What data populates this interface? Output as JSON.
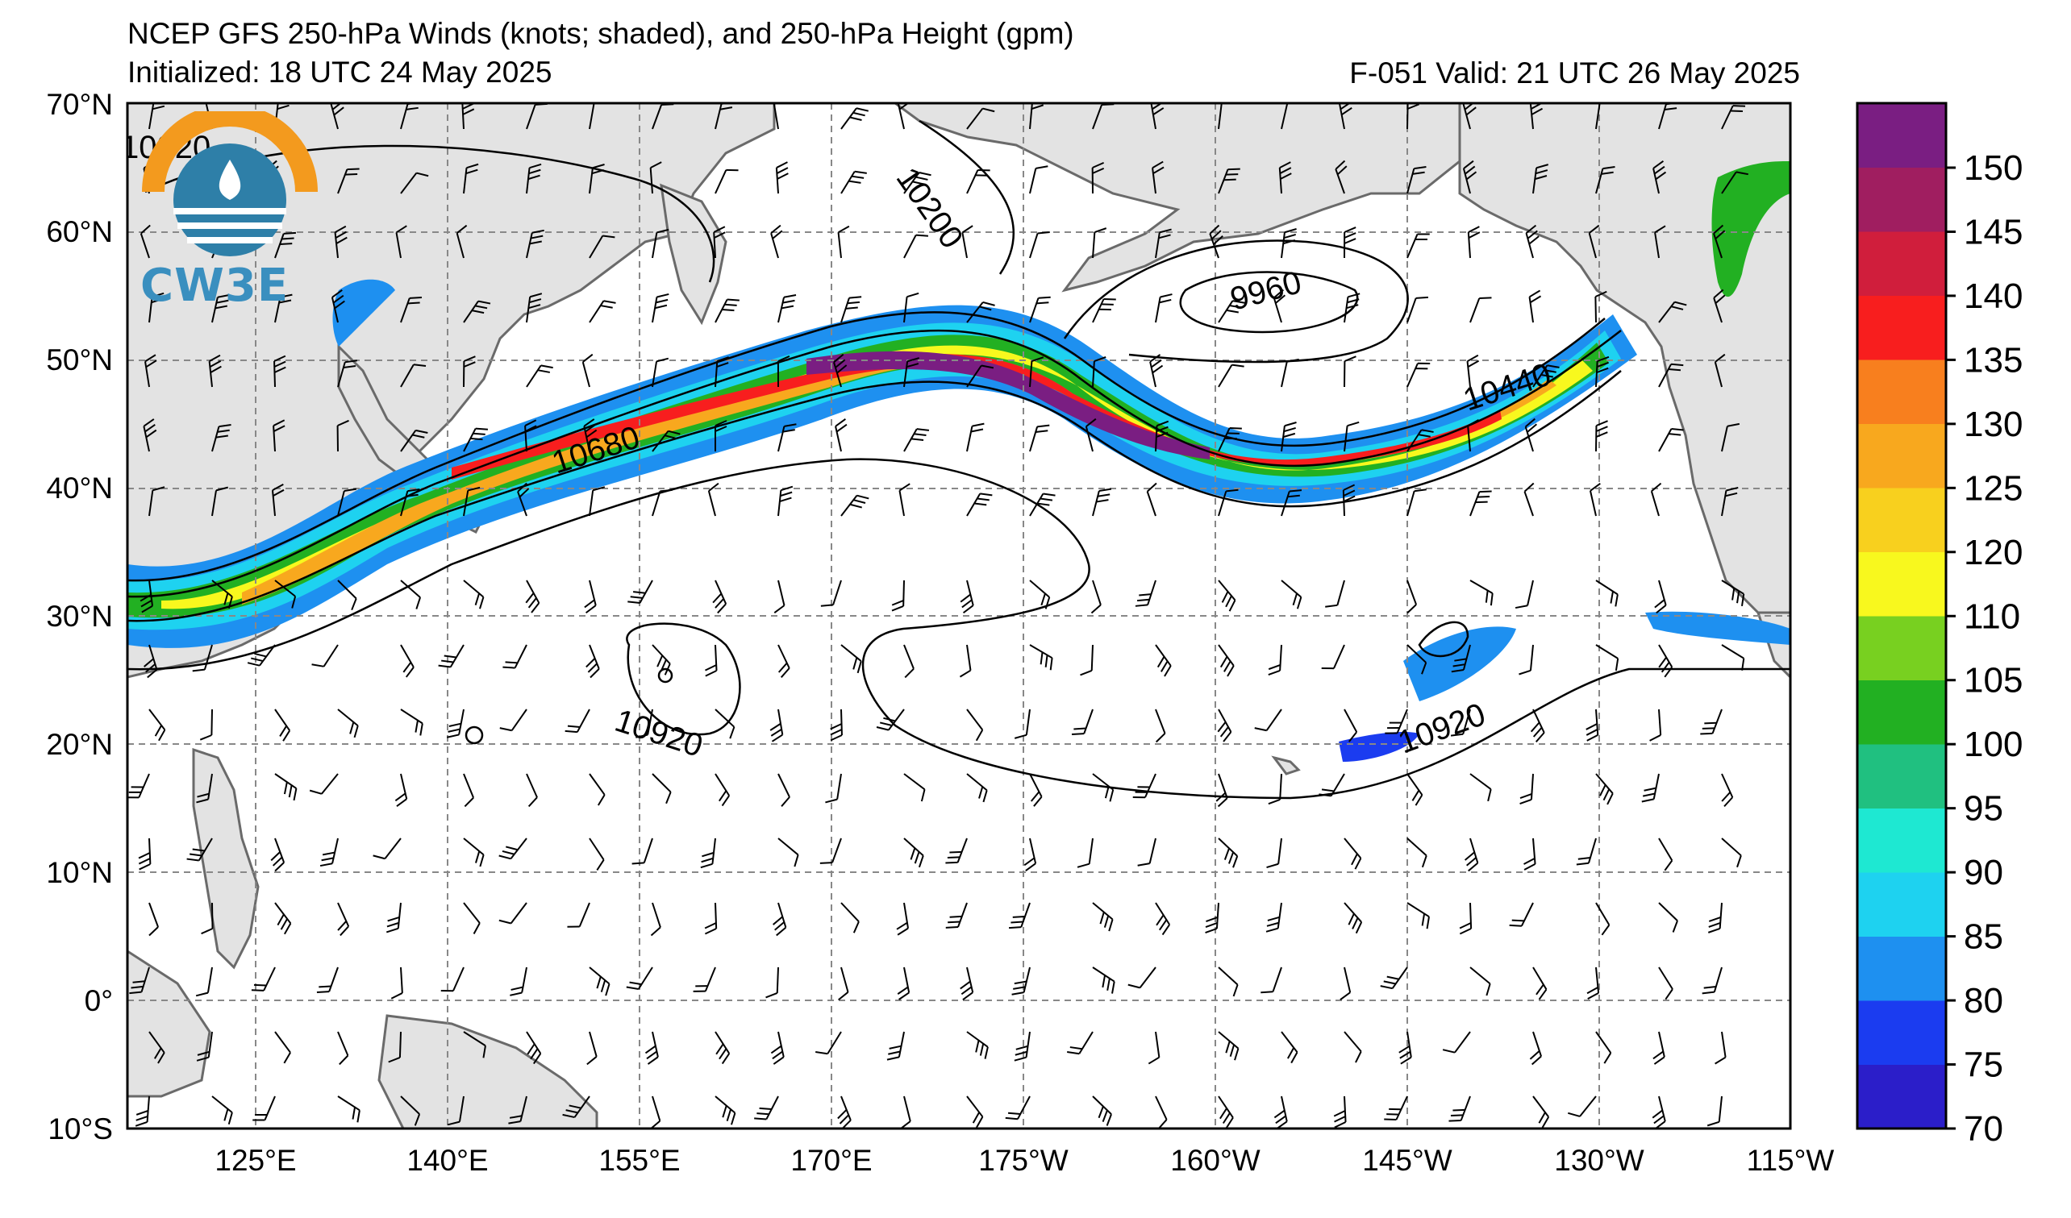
{
  "title": {
    "line1": "NCEP GFS 250-hPa Winds (knots; shaded), and 250-hPa Height (gpm)",
    "initialized": "Initialized: 18 UTC 24 May 2025",
    "valid": "F-051  Valid: 21 UTC 26 May 2025"
  },
  "logo": {
    "text": "CW3E",
    "icon": "cw3e-logo-icon"
  },
  "map": {
    "lat_ticks": [
      "70°N",
      "60°N",
      "50°N",
      "40°N",
      "30°N",
      "20°N",
      "10°N",
      "0°",
      "10°S"
    ],
    "lon_ticks": [
      "125°E",
      "140°E",
      "155°E",
      "170°E",
      "175°W",
      "160°W",
      "145°W",
      "130°W",
      "115°W"
    ],
    "lat_range": [
      -10,
      70
    ],
    "lon_range_labels": [
      "115°E",
      "115°W"
    ],
    "gridlines": true,
    "contour_labels": [
      {
        "text": "10680"
      },
      {
        "text": "10200"
      },
      {
        "text": "9960"
      },
      {
        "text": "10440"
      },
      {
        "text": "10920"
      },
      {
        "text": "10920"
      },
      {
        "text": "10920"
      }
    ]
  },
  "colorbar": {
    "labels": [
      "150",
      "145",
      "140",
      "135",
      "130",
      "125",
      "120",
      "110",
      "105",
      "100",
      "95",
      "90",
      "85",
      "80",
      "75",
      "70"
    ],
    "colors": [
      "#2b1ec9",
      "#1b3cf0",
      "#1e90f0",
      "#1ed2f0",
      "#1ee8d2",
      "#20c080",
      "#22b022",
      "#78d020",
      "#f8f81e",
      "#f8d01e",
      "#f8a81e",
      "#f87f1e",
      "#f81e1e",
      "#d01e3c",
      "#a01e60",
      "#7a1e82"
    ]
  },
  "colors": {
    "land": "#e3e3e3",
    "ocean": "#ffffff",
    "coast": "#6a6a6a",
    "grid": "#888888"
  }
}
